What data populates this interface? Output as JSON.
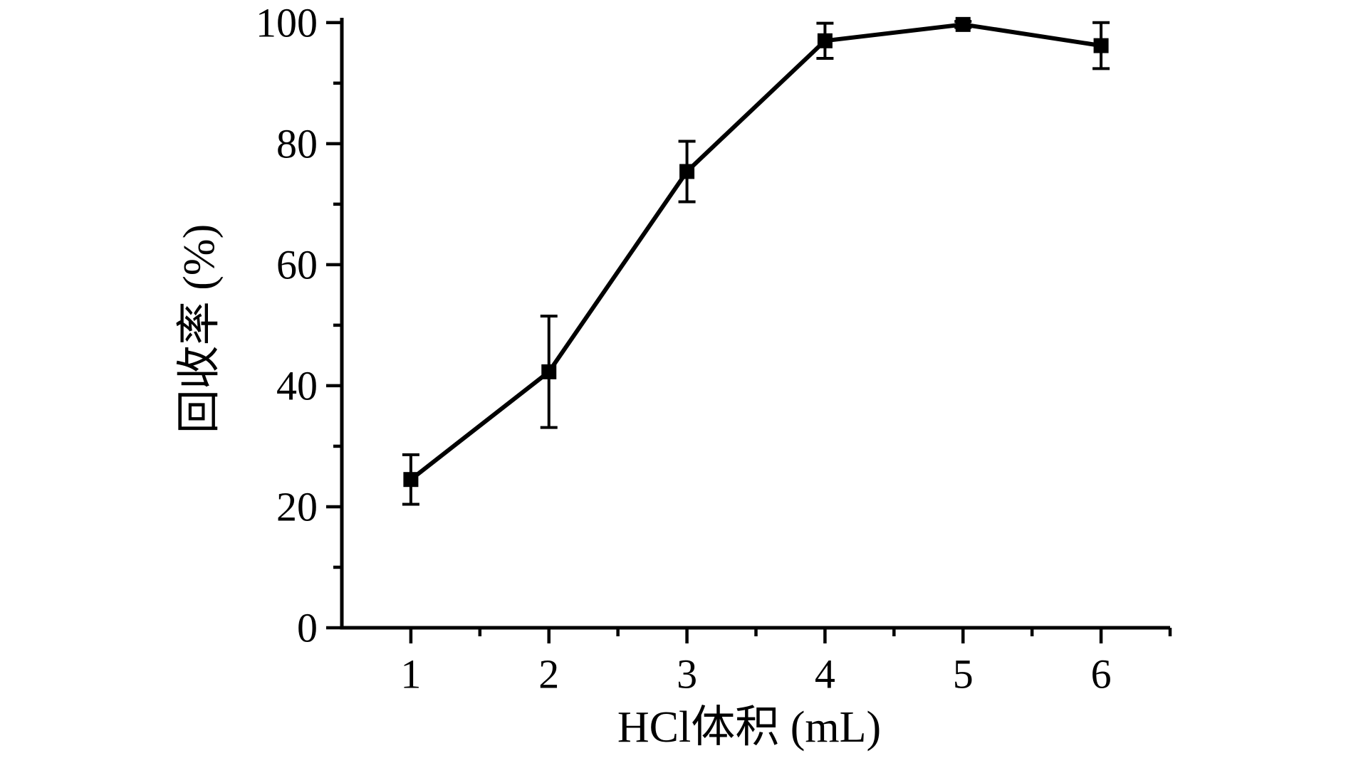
{
  "figure": {
    "background": "#ffffff",
    "ink_color": "#000000"
  },
  "chart_data": {
    "type": "line",
    "title": "",
    "xlabel": "HCl体积 (mL)",
    "ylabel": "回收率 (%)",
    "x": [
      1,
      2,
      3,
      4,
      5,
      6
    ],
    "series": [
      {
        "name": "回收率",
        "values": [
          24.5,
          42.3,
          75.4,
          97.0,
          99.7,
          96.2
        ],
        "yerr": [
          4.1,
          9.2,
          5.0,
          2.9,
          0.5,
          3.8
        ],
        "marker": "filled-square",
        "color": "#000000"
      }
    ],
    "xlim": [
      0.5,
      6.5
    ],
    "ylim": [
      0,
      100.8
    ],
    "x_major_ticks": [
      1,
      2,
      3,
      4,
      5,
      6
    ],
    "x_tick_labels": [
      "1",
      "2",
      "3",
      "4",
      "5",
      "6"
    ],
    "x_minor_ticks": [
      1.5,
      2.5,
      3.5,
      4.5,
      5.5,
      6.5
    ],
    "y_major_ticks": [
      0,
      20,
      40,
      60,
      80,
      100
    ],
    "y_tick_labels": [
      "0",
      "20",
      "40",
      "60",
      "80",
      "100"
    ],
    "y_minor_ticks": [
      10,
      30,
      50,
      70,
      90
    ],
    "grid": false,
    "legend": "none",
    "spines": [
      "left",
      "bottom"
    ],
    "tick_direction": "out"
  }
}
